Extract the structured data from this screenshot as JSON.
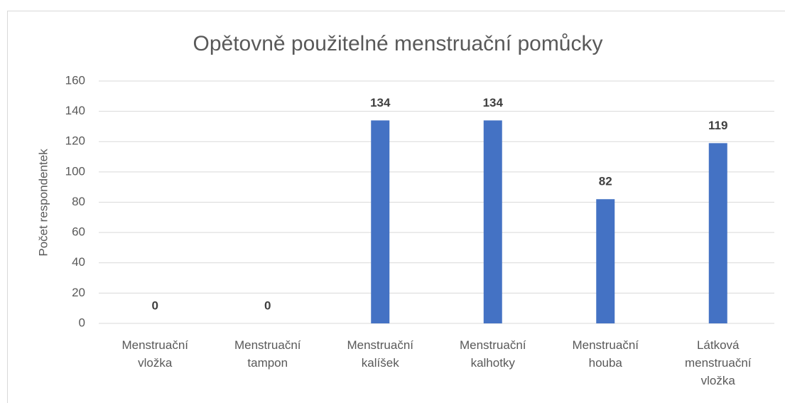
{
  "chart_data": {
    "type": "bar",
    "title": "Opětovně použitelné menstruační pomůcky",
    "y_label": "Počet respondentek",
    "categories": [
      "Menstruační vložka",
      "Menstruační tampon",
      "Menstruační kalíšek",
      "Menstruační kalhotky",
      "Menstruační houba",
      "Látková menstruační vložka"
    ],
    "values": [
      0,
      0,
      134,
      134,
      82,
      119
    ],
    "color": "#4472c4",
    "ylim": [
      0,
      160
    ],
    "yticks": [
      0,
      20,
      40,
      60,
      80,
      100,
      120,
      140,
      160
    ],
    "grid": true
  }
}
